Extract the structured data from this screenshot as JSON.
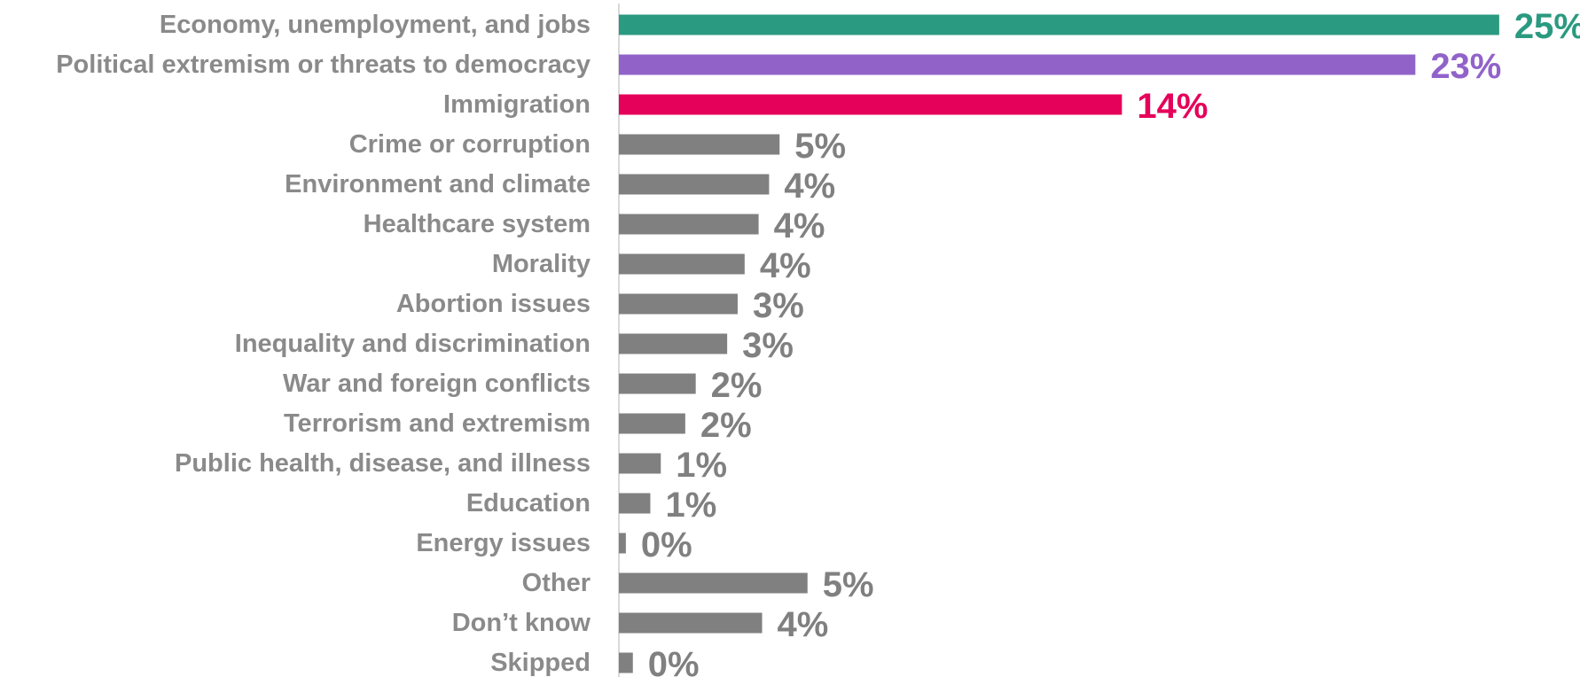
{
  "chart_data": {
    "type": "bar",
    "orientation": "horizontal",
    "title": "",
    "xlabel": "",
    "ylabel": "",
    "xlim": [
      0,
      25
    ],
    "grid": false,
    "legend": "none",
    "categories": [
      "Economy, unemployment, and jobs",
      "Political extremism or threats to democracy",
      "Immigration",
      "Crime or corruption",
      "Environment and climate",
      "Healthcare system",
      "Morality",
      "Abortion issues",
      "Inequality and discrimination",
      "War and foreign conflicts",
      "Terrorism and extremism",
      "Public health, disease, and illness",
      "Education",
      "Energy issues",
      "Other",
      "Don’t know",
      "Skipped"
    ],
    "values": [
      25.2,
      22.8,
      14.4,
      4.6,
      4.3,
      4.0,
      3.6,
      3.4,
      3.1,
      2.2,
      1.9,
      1.2,
      0.9,
      0.2,
      5.4,
      4.1,
      0.4
    ],
    "value_labels": [
      "25%",
      "23%",
      "14%",
      "5%",
      "4%",
      "4%",
      "4%",
      "3%",
      "3%",
      "2%",
      "2%",
      "1%",
      "1%",
      "0%",
      "5%",
      "4%",
      "0%"
    ],
    "colors": [
      "#2a9a80",
      "#9163c9",
      "#e5005a",
      "#808080",
      "#808080",
      "#808080",
      "#808080",
      "#808080",
      "#808080",
      "#808080",
      "#808080",
      "#808080",
      "#808080",
      "#808080",
      "#808080",
      "#808080",
      "#808080"
    ]
  }
}
